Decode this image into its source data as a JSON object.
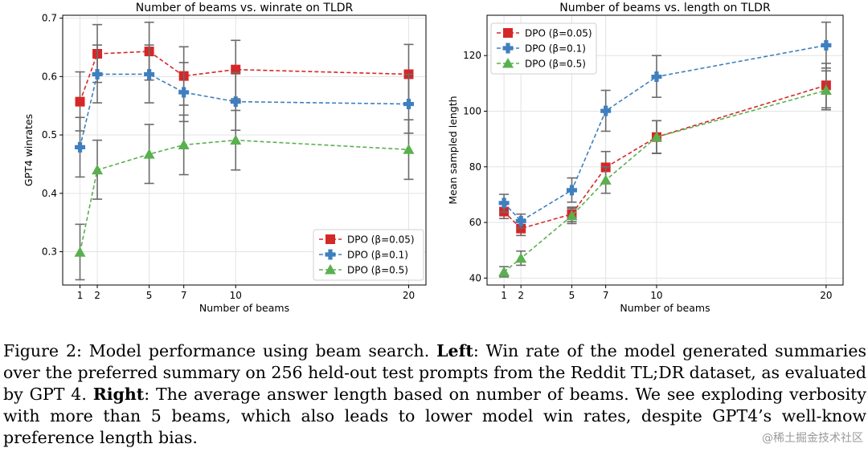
{
  "chart_data": [
    {
      "type": "line",
      "title": "Number of beams vs. winrate on TLDR",
      "xlabel": "Number of beams",
      "ylabel": "GPT4 winrates",
      "x": [
        1,
        2,
        5,
        7,
        10,
        20
      ],
      "xticks": [
        1,
        2,
        5,
        7,
        10,
        20
      ],
      "xlim": [
        0,
        21
      ],
      "ylim": [
        0.243,
        0.705
      ],
      "yticks": [
        0.3,
        0.4,
        0.5,
        0.6,
        0.7
      ],
      "ytick_labels": [
        "0.3",
        "0.4",
        "0.5",
        "0.6",
        "0.7"
      ],
      "grid": true,
      "legend_position": "bottom-right",
      "series": [
        {
          "name": "DPO (β=0.05)",
          "color": "#d62728",
          "marker": "square",
          "values": [
            0.557,
            0.639,
            0.643,
            0.601,
            0.612,
            0.604
          ],
          "err_low": [
            0.507,
            0.59,
            0.594,
            0.551,
            0.562,
            0.554
          ],
          "err_high": [
            0.608,
            0.689,
            0.693,
            0.651,
            0.662,
            0.655
          ]
        },
        {
          "name": "DPO (β=0.1)",
          "color": "#3f7fbf",
          "marker": "plus",
          "values": [
            0.479,
            0.604,
            0.604,
            0.573,
            0.557,
            0.553
          ],
          "err_low": [
            0.428,
            0.555,
            0.555,
            0.523,
            0.508,
            0.503
          ],
          "err_high": [
            0.53,
            0.654,
            0.654,
            0.624,
            0.607,
            0.604
          ]
        },
        {
          "name": "DPO (β=0.5)",
          "color": "#5ab04f",
          "marker": "triangle",
          "values": [
            0.299,
            0.44,
            0.467,
            0.483,
            0.491,
            0.475
          ],
          "err_low": [
            0.252,
            0.39,
            0.417,
            0.432,
            0.44,
            0.424
          ],
          "err_high": [
            0.347,
            0.491,
            0.518,
            0.534,
            0.542,
            0.526
          ]
        }
      ]
    },
    {
      "type": "line",
      "title": "Number of beams vs. length on TLDR",
      "xlabel": "Number of beams",
      "ylabel": "Mean sampled length",
      "x": [
        1,
        2,
        5,
        7,
        10,
        20
      ],
      "xticks": [
        1,
        2,
        5,
        7,
        10,
        20
      ],
      "xlim": [
        0,
        21
      ],
      "ylim": [
        37.5,
        134.5
      ],
      "yticks": [
        40,
        60,
        80,
        100,
        120
      ],
      "ytick_labels": [
        "40",
        "60",
        "80",
        "100",
        "120"
      ],
      "grid": true,
      "legend_position": "top-left",
      "series": [
        {
          "name": "DPO (β=0.05)",
          "color": "#d62728",
          "marker": "square",
          "values": [
            63.9,
            57.8,
            63.0,
            79.8,
            90.7,
            109.3
          ],
          "err_low": [
            61.4,
            55.3,
            60.3,
            74.0,
            84.9,
            101.2
          ],
          "err_high": [
            66.5,
            60.3,
            65.5,
            85.5,
            96.6,
            117.2
          ]
        },
        {
          "name": "DPO (β=0.1)",
          "color": "#3f7fbf",
          "marker": "plus",
          "values": [
            67.0,
            60.5,
            71.6,
            100.1,
            112.4,
            123.7
          ],
          "err_low": [
            63.7,
            58.0,
            67.3,
            92.8,
            105.0,
            115.5
          ],
          "err_high": [
            70.1,
            63.0,
            76.0,
            107.5,
            120.0,
            132.0
          ]
        },
        {
          "name": "DPO (β=0.5)",
          "color": "#5ab04f",
          "marker": "triangle",
          "values": [
            42.2,
            47.1,
            62.4,
            75.2,
            90.7,
            107.5
          ],
          "err_low": [
            40.4,
            44.6,
            59.6,
            70.5,
            84.8,
            100.5
          ],
          "err_high": [
            44.1,
            49.7,
            65.1,
            80.0,
            96.6,
            114.5
          ]
        }
      ]
    }
  ],
  "caption": {
    "figure_label": "Figure 2: Model performance using beam search. ",
    "left_label": "Left",
    "left_text": ": Win rate of the model generated summaries over the preferred summary on 256 held-out test prompts from the Reddit TL;DR dataset, as evaluated by GPT 4. ",
    "right_label": "Right",
    "right_text": ": The average answer length based on number of beams. We see exploding verbosity with more than 5 beams, which also leads to lower model win rates, despite GPT4’s well-know preference length bias."
  },
  "watermark": "@稀土掘金技术社区"
}
